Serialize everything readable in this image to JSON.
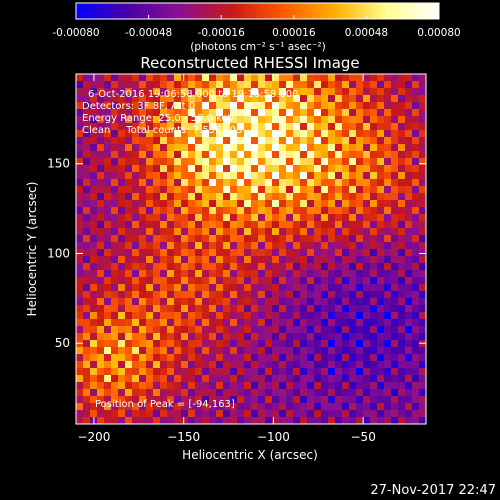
{
  "colorbar": {
    "tick_labels": [
      "-0.00080",
      "-0.00048",
      "-0.00016",
      "0.00016",
      "0.00048",
      "0.00080"
    ],
    "tick_values": [
      -0.0008,
      -0.00048,
      -0.00016,
      0.00016,
      0.00048,
      0.0008
    ],
    "range": [
      -0.0008,
      0.0008
    ],
    "unit_label": "(photons cm⁻² s⁻¹ asec⁻²)",
    "colors": [
      "#0000ff",
      "#4a00a8",
      "#8a1090",
      "#c81818",
      "#ff5a00",
      "#ffb000",
      "#ffff90",
      "#ffffff"
    ]
  },
  "chart_data": {
    "type": "heatmap",
    "title": "Reconstructed RHESSI Image",
    "xlabel": "Heliocentric X (arcsec)",
    "ylabel": "Heliocentric Y (arcsec)",
    "xlim": [
      -210,
      -15
    ],
    "ylim": [
      5,
      200
    ],
    "x_ticks": [
      -200,
      -150,
      -100,
      -50
    ],
    "y_ticks": [
      50,
      100,
      150
    ],
    "x_tick_labels": [
      "−200",
      "−150",
      "−100",
      "−50"
    ],
    "y_tick_labels": [
      "50",
      "100",
      "150"
    ],
    "grid": false,
    "peak": [
      -94,
      163
    ],
    "annotations": {
      "time": "6-Oct-2016 19:06:58.000 to 19:16:58.000",
      "detectors": "Detectors: 3F 8F, Att 0",
      "energy": "Energy Range: 25.0 - 50.0 keV",
      "clean": "Clean     Total counts: 7.53E+03",
      "peak_text": "Position of Peak = [-94,163]"
    }
  },
  "footer": {
    "timestamp": "27-Nov-2017 22:47"
  }
}
